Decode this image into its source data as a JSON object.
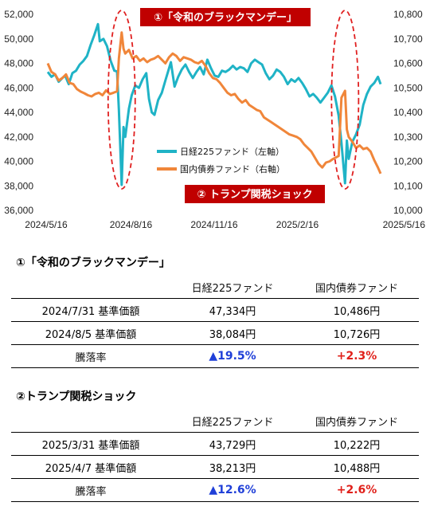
{
  "chart_data": {
    "type": "line",
    "x_ticks": [
      "2024/5/16",
      "2024/8/16",
      "2024/11/16",
      "2025/2/16",
      "2025/5/16"
    ],
    "x_range": [
      "2024-05-16",
      "2025-05-16"
    ],
    "left_axis": {
      "ylim": [
        36000,
        52000
      ],
      "ticks": [
        "36,000",
        "38,000",
        "40,000",
        "42,000",
        "44,000",
        "46,000",
        "48,000",
        "50,000",
        "52,000"
      ]
    },
    "right_axis": {
      "ylim": [
        10000,
        10800
      ],
      "ticks": [
        "10,000",
        "10,100",
        "10,200",
        "10,300",
        "10,400",
        "10,500",
        "10,600",
        "10,700",
        "10,800"
      ]
    },
    "series": [
      {
        "name": "日経225ファンド（左軸）",
        "axis": "left",
        "color": "#1fb3c6",
        "points": [
          [
            "2024-05-16",
            47300
          ],
          [
            "2024-05-20",
            46900
          ],
          [
            "2024-05-24",
            47100
          ],
          [
            "2024-05-28",
            46500
          ],
          [
            "2024-06-01",
            46800
          ],
          [
            "2024-06-04",
            47000
          ],
          [
            "2024-06-08",
            46300
          ],
          [
            "2024-06-12",
            47200
          ],
          [
            "2024-06-16",
            47400
          ],
          [
            "2024-06-20",
            47900
          ],
          [
            "2024-06-24",
            48200
          ],
          [
            "2024-06-28",
            48600
          ],
          [
            "2024-07-02",
            49500
          ],
          [
            "2024-07-06",
            50300
          ],
          [
            "2024-07-10",
            51200
          ],
          [
            "2024-07-12",
            49800
          ],
          [
            "2024-07-16",
            50000
          ],
          [
            "2024-07-20",
            49400
          ],
          [
            "2024-07-24",
            48200
          ],
          [
            "2024-07-28",
            47400
          ],
          [
            "2024-07-31",
            47334
          ],
          [
            "2024-08-02",
            44200
          ],
          [
            "2024-08-05",
            38084
          ],
          [
            "2024-08-07",
            42800
          ],
          [
            "2024-08-09",
            42000
          ],
          [
            "2024-08-13",
            44300
          ],
          [
            "2024-08-16",
            45400
          ],
          [
            "2024-08-20",
            46200
          ],
          [
            "2024-08-24",
            46000
          ],
          [
            "2024-08-28",
            46700
          ],
          [
            "2024-09-01",
            47200
          ],
          [
            "2024-09-04",
            45100
          ],
          [
            "2024-09-07",
            44000
          ],
          [
            "2024-09-10",
            43800
          ],
          [
            "2024-09-14",
            45000
          ],
          [
            "2024-09-18",
            45600
          ],
          [
            "2024-09-22",
            46600
          ],
          [
            "2024-09-26",
            47600
          ],
          [
            "2024-09-28",
            48100
          ],
          [
            "2024-10-02",
            46100
          ],
          [
            "2024-10-06",
            46900
          ],
          [
            "2024-10-10",
            47500
          ],
          [
            "2024-10-14",
            47900
          ],
          [
            "2024-10-18",
            47300
          ],
          [
            "2024-10-22",
            46800
          ],
          [
            "2024-10-26",
            47300
          ],
          [
            "2024-10-30",
            47700
          ],
          [
            "2024-11-03",
            47100
          ],
          [
            "2024-11-07",
            48300
          ],
          [
            "2024-11-11",
            47600
          ],
          [
            "2024-11-15",
            47000
          ],
          [
            "2024-11-19",
            46900
          ],
          [
            "2024-11-23",
            47400
          ],
          [
            "2024-11-27",
            47300
          ],
          [
            "2024-12-01",
            47500
          ],
          [
            "2024-12-05",
            47800
          ],
          [
            "2024-12-09",
            47500
          ],
          [
            "2024-12-13",
            47700
          ],
          [
            "2024-12-17",
            47600
          ],
          [
            "2024-12-21",
            47300
          ],
          [
            "2024-12-25",
            48000
          ],
          [
            "2024-12-29",
            48300
          ],
          [
            "2025-01-02",
            48100
          ],
          [
            "2025-01-06",
            47900
          ],
          [
            "2025-01-10",
            47200
          ],
          [
            "2025-01-14",
            46700
          ],
          [
            "2025-01-18",
            47000
          ],
          [
            "2025-01-22",
            47500
          ],
          [
            "2025-01-26",
            47300
          ],
          [
            "2025-01-30",
            46900
          ],
          [
            "2025-02-03",
            46300
          ],
          [
            "2025-02-07",
            46700
          ],
          [
            "2025-02-11",
            46500
          ],
          [
            "2025-02-15",
            46800
          ],
          [
            "2025-02-19",
            46400
          ],
          [
            "2025-02-23",
            45900
          ],
          [
            "2025-02-27",
            45300
          ],
          [
            "2025-03-03",
            45500
          ],
          [
            "2025-03-07",
            45200
          ],
          [
            "2025-03-11",
            44800
          ],
          [
            "2025-03-15",
            45200
          ],
          [
            "2025-03-19",
            45600
          ],
          [
            "2025-03-23",
            46200
          ],
          [
            "2025-03-27",
            45300
          ],
          [
            "2025-03-31",
            43729
          ],
          [
            "2025-04-03",
            41500
          ],
          [
            "2025-04-07",
            38213
          ],
          [
            "2025-04-09",
            41700
          ],
          [
            "2025-04-11",
            40200
          ],
          [
            "2025-04-15",
            41600
          ],
          [
            "2025-04-19",
            42200
          ],
          [
            "2025-04-23",
            43000
          ],
          [
            "2025-04-27",
            44600
          ],
          [
            "2025-05-01",
            45500
          ],
          [
            "2025-05-05",
            46100
          ],
          [
            "2025-05-09",
            46400
          ],
          [
            "2025-05-13",
            46900
          ],
          [
            "2025-05-16",
            46300
          ]
        ]
      },
      {
        "name": "国内債券ファンド（右軸）",
        "axis": "right",
        "color": "#f0863a",
        "points": [
          [
            "2024-05-16",
            10600
          ],
          [
            "2024-05-20",
            10565
          ],
          [
            "2024-05-24",
            10555
          ],
          [
            "2024-05-28",
            10530
          ],
          [
            "2024-06-01",
            10540
          ],
          [
            "2024-06-05",
            10555
          ],
          [
            "2024-06-09",
            10520
          ],
          [
            "2024-06-13",
            10515
          ],
          [
            "2024-06-17",
            10495
          ],
          [
            "2024-06-21",
            10485
          ],
          [
            "2024-06-25",
            10478
          ],
          [
            "2024-06-29",
            10470
          ],
          [
            "2024-07-03",
            10465
          ],
          [
            "2024-07-07",
            10475
          ],
          [
            "2024-07-11",
            10480
          ],
          [
            "2024-07-15",
            10470
          ],
          [
            "2024-07-19",
            10490
          ],
          [
            "2024-07-23",
            10475
          ],
          [
            "2024-07-27",
            10480
          ],
          [
            "2024-07-31",
            10486
          ],
          [
            "2024-08-02",
            10620
          ],
          [
            "2024-08-05",
            10726
          ],
          [
            "2024-08-07",
            10660
          ],
          [
            "2024-08-09",
            10640
          ],
          [
            "2024-08-13",
            10655
          ],
          [
            "2024-08-17",
            10620
          ],
          [
            "2024-08-21",
            10630
          ],
          [
            "2024-08-25",
            10610
          ],
          [
            "2024-08-29",
            10620
          ],
          [
            "2024-09-02",
            10605
          ],
          [
            "2024-09-06",
            10615
          ],
          [
            "2024-09-10",
            10620
          ],
          [
            "2024-09-14",
            10630
          ],
          [
            "2024-09-18",
            10615
          ],
          [
            "2024-09-22",
            10600
          ],
          [
            "2024-09-26",
            10625
          ],
          [
            "2024-09-30",
            10640
          ],
          [
            "2024-10-04",
            10630
          ],
          [
            "2024-10-08",
            10610
          ],
          [
            "2024-10-12",
            10625
          ],
          [
            "2024-10-16",
            10620
          ],
          [
            "2024-10-20",
            10615
          ],
          [
            "2024-10-24",
            10605
          ],
          [
            "2024-10-28",
            10600
          ],
          [
            "2024-11-01",
            10610
          ],
          [
            "2024-11-05",
            10590
          ],
          [
            "2024-11-09",
            10560
          ],
          [
            "2024-11-13",
            10540
          ],
          [
            "2024-11-17",
            10535
          ],
          [
            "2024-11-21",
            10520
          ],
          [
            "2024-11-25",
            10500
          ],
          [
            "2024-11-29",
            10480
          ],
          [
            "2024-12-03",
            10470
          ],
          [
            "2024-12-07",
            10475
          ],
          [
            "2024-12-11",
            10455
          ],
          [
            "2024-12-15",
            10440
          ],
          [
            "2024-12-19",
            10450
          ],
          [
            "2024-12-23",
            10430
          ],
          [
            "2024-12-27",
            10420
          ],
          [
            "2024-12-31",
            10410
          ],
          [
            "2025-01-04",
            10405
          ],
          [
            "2025-01-08",
            10380
          ],
          [
            "2025-01-12",
            10370
          ],
          [
            "2025-01-16",
            10360
          ],
          [
            "2025-01-20",
            10350
          ],
          [
            "2025-01-24",
            10340
          ],
          [
            "2025-01-28",
            10330
          ],
          [
            "2025-02-01",
            10320
          ],
          [
            "2025-02-05",
            10310
          ],
          [
            "2025-02-09",
            10305
          ],
          [
            "2025-02-13",
            10300
          ],
          [
            "2025-02-17",
            10290
          ],
          [
            "2025-02-21",
            10270
          ],
          [
            "2025-02-25",
            10255
          ],
          [
            "2025-03-01",
            10240
          ],
          [
            "2025-03-05",
            10215
          ],
          [
            "2025-03-09",
            10190
          ],
          [
            "2025-03-13",
            10175
          ],
          [
            "2025-03-17",
            10195
          ],
          [
            "2025-03-21",
            10200
          ],
          [
            "2025-03-25",
            10210
          ],
          [
            "2025-03-31",
            10222
          ],
          [
            "2025-04-03",
            10460
          ],
          [
            "2025-04-07",
            10488
          ],
          [
            "2025-04-09",
            10330
          ],
          [
            "2025-04-11",
            10300
          ],
          [
            "2025-04-15",
            10280
          ],
          [
            "2025-04-19",
            10255
          ],
          [
            "2025-04-23",
            10265
          ],
          [
            "2025-04-27",
            10250
          ],
          [
            "2025-05-01",
            10255
          ],
          [
            "2025-05-05",
            10240
          ],
          [
            "2025-05-09",
            10205
          ],
          [
            "2025-05-13",
            10175
          ],
          [
            "2025-05-16",
            10150
          ]
        ]
      }
    ],
    "legend_placement": "center",
    "grid": false,
    "annotations": [
      {
        "label": "①「令和のブラックマンデー」",
        "date": "2024-08-05"
      },
      {
        "label": "② トランプ関税ショック",
        "date": "2025-04-07"
      }
    ]
  },
  "sections": [
    {
      "title": "①「令和のブラックマンデー」",
      "headers": [
        "",
        "日経225ファンド",
        "国内債券ファンド"
      ],
      "rows": [
        [
          "2024/7/31 基準価額",
          "47,334円",
          "10,486円"
        ],
        [
          "2024/8/5 基準価額",
          "38,084円",
          "10,726円"
        ]
      ],
      "change": [
        "騰落率",
        "▲19.5%",
        "+2.3%"
      ]
    },
    {
      "title": "②トランプ関税ショック",
      "headers": [
        "",
        "日経225ファンド",
        "国内債券ファンド"
      ],
      "rows": [
        [
          "2025/3/31 基準価額",
          "43,729円",
          "10,222円"
        ],
        [
          "2025/4/7 基準価額",
          "38,213円",
          "10,488円"
        ]
      ],
      "change": [
        "騰落率",
        "▲12.6%",
        "+2.6%"
      ]
    }
  ]
}
